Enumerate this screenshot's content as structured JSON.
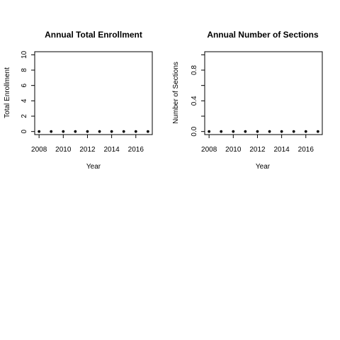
{
  "chart_data": [
    {
      "type": "scatter",
      "title": "Annual Total Enrollment",
      "xlabel": "Year",
      "ylabel": "Total Enrollment",
      "x": [
        2008,
        2009,
        2010,
        2011,
        2012,
        2013,
        2014,
        2015,
        2016,
        2017
      ],
      "values": [
        0,
        0,
        0,
        0,
        0,
        0,
        0,
        0,
        0,
        0
      ],
      "xlim": [
        2007.64,
        2017.36
      ],
      "ylim": [
        -0.4,
        10.4
      ],
      "xticks": [
        2008,
        2010,
        2012,
        2014,
        2016
      ],
      "xtick_labels": [
        "2008",
        "2010",
        "2012",
        "2014",
        "2016"
      ],
      "yticks": [
        0,
        2,
        4,
        6,
        8,
        10
      ],
      "ytick_labels": [
        "0",
        "2",
        "4",
        "6",
        "8",
        "10"
      ],
      "grid": false,
      "legend": "none"
    },
    {
      "type": "scatter",
      "title": "Annual Number of Sections",
      "xlabel": "Year",
      "ylabel": "Number of Sections",
      "x": [
        2008,
        2009,
        2010,
        2011,
        2012,
        2013,
        2014,
        2015,
        2016,
        2017
      ],
      "values": [
        0,
        0,
        0,
        0,
        0,
        0,
        0,
        0,
        0,
        0
      ],
      "xlim": [
        2007.64,
        2017.36
      ],
      "ylim": [
        -0.04,
        1.04
      ],
      "xticks": [
        2008,
        2010,
        2012,
        2014,
        2016
      ],
      "xtick_labels": [
        "2008",
        "2010",
        "2012",
        "2014",
        "2016"
      ],
      "yticks": [
        0,
        0.2,
        0.4,
        0.6,
        0.8,
        1.0
      ],
      "ytick_labels": [
        "0.0",
        "",
        "0.4",
        "",
        "0.8",
        ""
      ],
      "grid": false,
      "legend": "none"
    }
  ]
}
